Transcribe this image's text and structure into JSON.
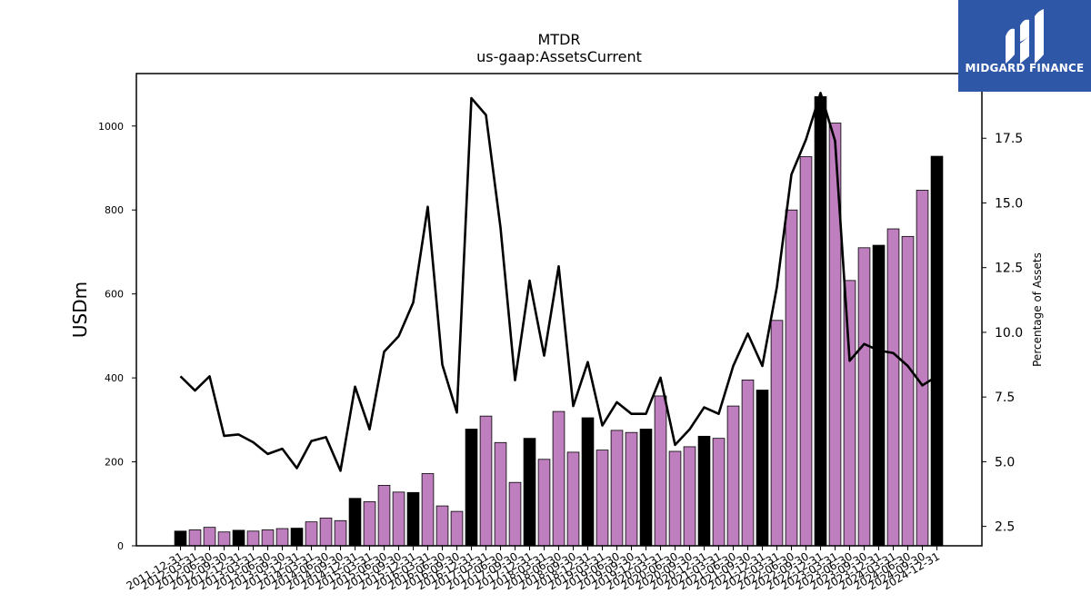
{
  "chart_data": {
    "type": "bar",
    "title": "MTDR",
    "subtitle": "us-gaap:AssetsCurrent",
    "ylabel": "USDm",
    "y2label": "Percentage of Assets",
    "ylim": [
      0,
      1125
    ],
    "y2lim": [
      1.75,
      20.0
    ],
    "yticks": [
      0,
      200,
      400,
      600,
      800,
      1000
    ],
    "y2ticks": [
      "2.5",
      "5.0",
      "7.5",
      "10.0",
      "12.5",
      "15.0",
      "17.5"
    ],
    "categories": [
      "2011-12-31",
      "2012-03-31",
      "2012-06-30",
      "2012-09-30",
      "2012-12-31",
      "2013-03-31",
      "2013-06-30",
      "2013-09-30",
      "2013-12-31",
      "2014-03-31",
      "2014-06-30",
      "2014-09-30",
      "2014-12-31",
      "2015-03-31",
      "2015-06-30",
      "2015-09-30",
      "2015-12-31",
      "2016-03-31",
      "2016-06-30",
      "2016-09-30",
      "2016-12-31",
      "2017-03-31",
      "2017-06-30",
      "2017-09-30",
      "2017-12-31",
      "2018-03-31",
      "2018-06-30",
      "2018-09-30",
      "2018-12-31",
      "2019-03-31",
      "2019-06-30",
      "2019-09-30",
      "2019-12-31",
      "2020-03-31",
      "2020-06-30",
      "2020-09-30",
      "2020-12-31",
      "2021-03-31",
      "2021-06-30",
      "2021-09-30",
      "2021-12-31",
      "2022-03-31",
      "2022-06-30",
      "2022-09-30",
      "2022-12-31",
      "2023-03-31",
      "2023-06-30",
      "2023-09-30",
      "2023-12-31",
      "2024-03-31",
      "2024-06-30",
      "2024-09-30",
      "2024-12-31"
    ],
    "values": [
      35,
      38,
      44,
      33,
      37,
      35,
      38,
      41,
      42,
      57,
      66,
      60,
      113,
      105,
      144,
      128,
      127,
      172,
      95,
      82,
      278,
      309,
      246,
      151,
      256,
      206,
      320,
      223,
      305,
      228,
      275,
      270,
      278,
      357,
      225,
      236,
      261,
      256,
      333,
      395,
      371,
      537,
      800,
      927,
      1070,
      1007,
      632,
      710,
      716,
      755,
      737,
      847,
      928
    ],
    "bar_colors": [
      "#000000",
      "#bf7fbf",
      "#bf7fbf",
      "#bf7fbf",
      "#000000",
      "#bf7fbf",
      "#bf7fbf",
      "#bf7fbf",
      "#000000",
      "#bf7fbf",
      "#bf7fbf",
      "#bf7fbf",
      "#000000",
      "#bf7fbf",
      "#bf7fbf",
      "#bf7fbf",
      "#000000",
      "#bf7fbf",
      "#bf7fbf",
      "#bf7fbf",
      "#000000",
      "#bf7fbf",
      "#bf7fbf",
      "#bf7fbf",
      "#000000",
      "#bf7fbf",
      "#bf7fbf",
      "#bf7fbf",
      "#000000",
      "#bf7fbf",
      "#bf7fbf",
      "#bf7fbf",
      "#000000",
      "#bf7fbf",
      "#bf7fbf",
      "#bf7fbf",
      "#000000",
      "#bf7fbf",
      "#bf7fbf",
      "#bf7fbf",
      "#000000",
      "#bf7fbf",
      "#bf7fbf",
      "#bf7fbf",
      "#000000",
      "#bf7fbf",
      "#bf7fbf",
      "#bf7fbf",
      "#000000",
      "#bf7fbf",
      "#bf7fbf",
      "#bf7fbf",
      "#000000"
    ],
    "line_values": [
      8.3,
      7.75,
      8.3,
      6.0,
      6.05,
      5.75,
      5.3,
      5.5,
      4.75,
      5.8,
      5.95,
      4.65,
      7.9,
      6.25,
      9.25,
      9.85,
      11.15,
      14.85,
      8.75,
      6.9,
      19.05,
      18.4,
      14.05,
      8.15,
      12.0,
      9.1,
      12.55,
      7.15,
      8.85,
      6.4,
      7.3,
      6.85,
      6.85,
      8.25,
      5.65,
      6.25,
      7.1,
      6.85,
      8.7,
      9.95,
      8.7,
      11.75,
      16.1,
      17.45,
      19.25,
      17.4,
      8.9,
      9.55,
      9.3,
      9.2,
      8.7,
      7.95,
      8.3
    ],
    "line_color": "#000000",
    "grid": false
  },
  "logo": {
    "text": "MIDGARD FINANCE",
    "bg": "#2f57a8"
  }
}
